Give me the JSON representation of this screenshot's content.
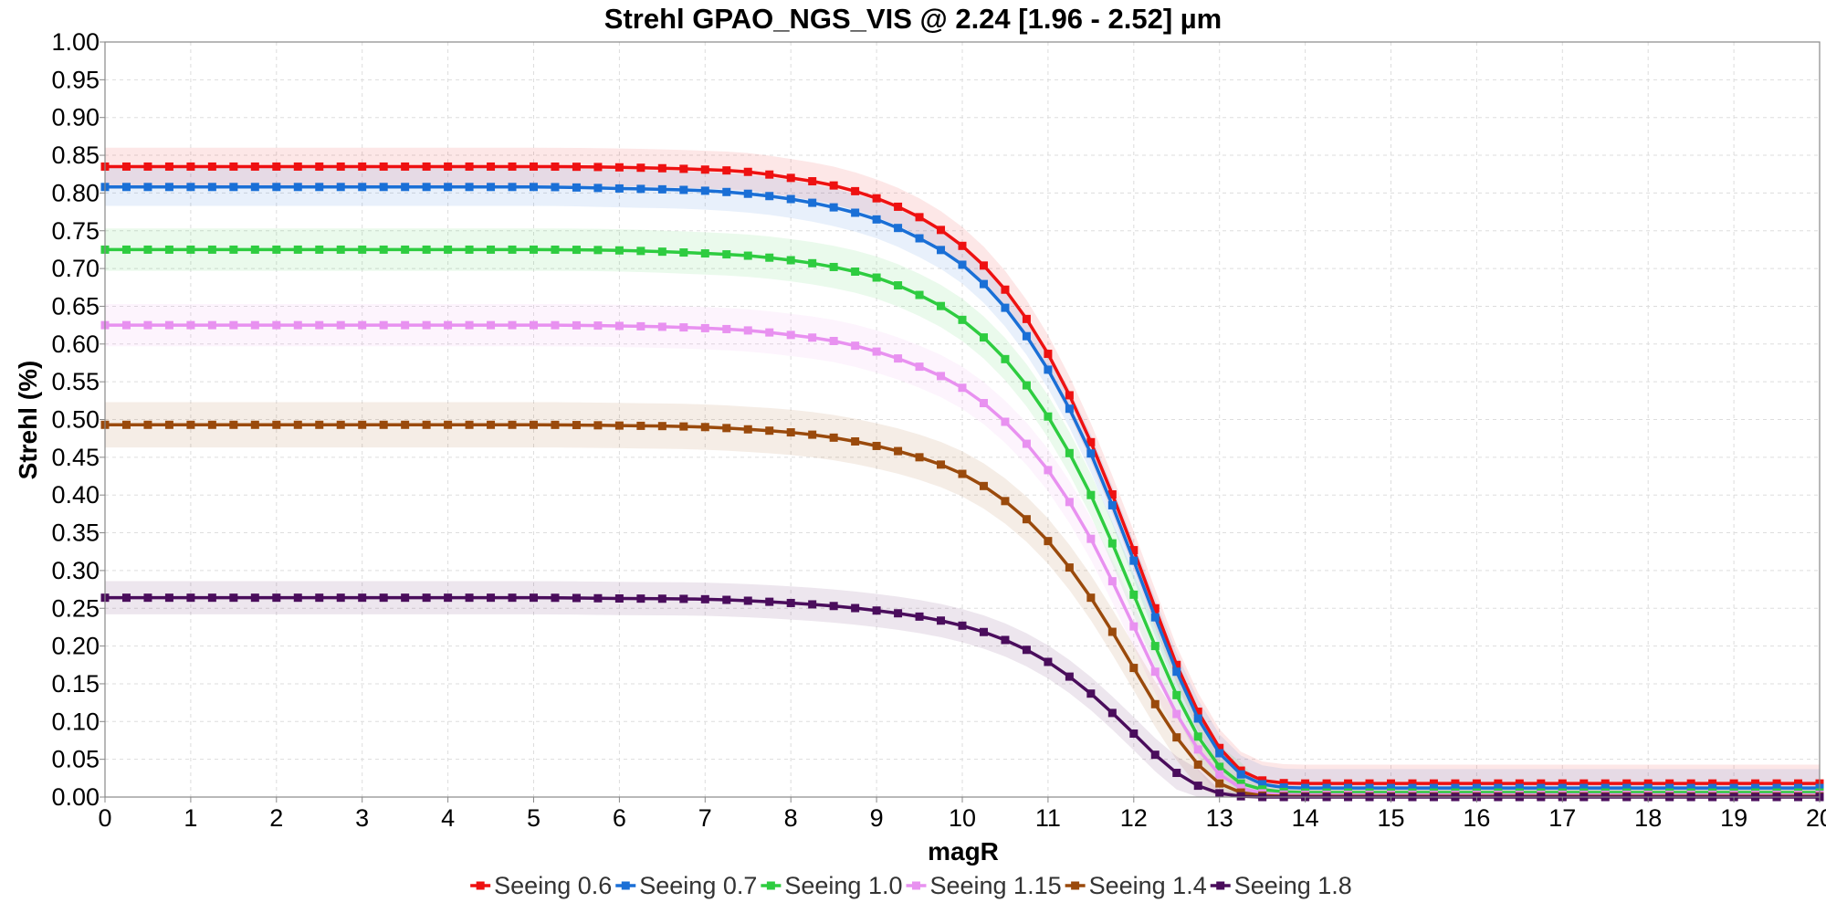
{
  "chart_data": {
    "type": "line",
    "title": "Strehl GPAO_NGS_VIS @ 2.24 [1.96 - 2.52] µm",
    "xlabel": "magR",
    "ylabel": "Strehl (%)",
    "xlim": [
      0,
      20
    ],
    "ylim": [
      0,
      1
    ],
    "grid": true,
    "legend_position": "bottom",
    "bands": "shaded uncertainty band around each series",
    "x_ticks": [
      "0",
      "1",
      "2",
      "3",
      "4",
      "5",
      "6",
      "7",
      "8",
      "9",
      "10",
      "11",
      "12",
      "13",
      "14",
      "15",
      "16",
      "17",
      "18",
      "19",
      "20"
    ],
    "y_ticks": [
      "0.00",
      "0.05",
      "0.10",
      "0.15",
      "0.20",
      "0.25",
      "0.30",
      "0.35",
      "0.40",
      "0.45",
      "0.50",
      "0.55",
      "0.60",
      "0.65",
      "0.70",
      "0.75",
      "0.80",
      "0.85",
      "0.90",
      "0.95",
      "1.00"
    ],
    "x": [
      0,
      1,
      2,
      3,
      4,
      5,
      6,
      7,
      7.5,
      8,
      8.5,
      9,
      9.5,
      10,
      10.5,
      11,
      11.5,
      12,
      12.25,
      12.5,
      12.75,
      13,
      13.25,
      13.5,
      14,
      15,
      16,
      17,
      18,
      19,
      20
    ],
    "series": [
      {
        "name": "Seeing 0.6",
        "color": "#ee1111",
        "band_width": 0.025,
        "values": [
          0.835,
          0.835,
          0.835,
          0.835,
          0.835,
          0.835,
          0.834,
          0.831,
          0.828,
          0.82,
          0.81,
          0.793,
          0.768,
          0.73,
          0.672,
          0.587,
          0.47,
          0.327,
          0.25,
          0.175,
          0.113,
          0.065,
          0.035,
          0.022,
          0.018,
          0.018,
          0.018,
          0.018,
          0.018,
          0.018,
          0.018
        ]
      },
      {
        "name": "Seeing 0.7",
        "color": "#1a6fd6",
        "band_width": 0.025,
        "values": [
          0.808,
          0.808,
          0.808,
          0.808,
          0.808,
          0.808,
          0.806,
          0.803,
          0.799,
          0.792,
          0.781,
          0.765,
          0.74,
          0.705,
          0.648,
          0.566,
          0.455,
          0.313,
          0.238,
          0.166,
          0.104,
          0.058,
          0.03,
          0.017,
          0.012,
          0.012,
          0.012,
          0.012,
          0.012,
          0.012,
          0.012
        ]
      },
      {
        "name": "Seeing 1.0",
        "color": "#2ecc40",
        "band_width": 0.028,
        "values": [
          0.725,
          0.725,
          0.725,
          0.725,
          0.725,
          0.725,
          0.724,
          0.72,
          0.717,
          0.711,
          0.702,
          0.688,
          0.665,
          0.632,
          0.58,
          0.504,
          0.4,
          0.268,
          0.2,
          0.135,
          0.08,
          0.04,
          0.018,
          0.01,
          0.006,
          0.006,
          0.006,
          0.006,
          0.006,
          0.006,
          0.006
        ]
      },
      {
        "name": "Seeing 1.15",
        "color": "#e891f0",
        "band_width": 0.028,
        "values": [
          0.625,
          0.625,
          0.625,
          0.625,
          0.625,
          0.625,
          0.624,
          0.621,
          0.618,
          0.612,
          0.604,
          0.59,
          0.57,
          0.542,
          0.497,
          0.433,
          0.342,
          0.226,
          0.166,
          0.11,
          0.063,
          0.03,
          0.012,
          0.005,
          0.003,
          0.003,
          0.003,
          0.003,
          0.003,
          0.003,
          0.003
        ]
      },
      {
        "name": "Seeing 1.4",
        "color": "#9a4a0c",
        "band_width": 0.03,
        "values": [
          0.493,
          0.493,
          0.493,
          0.493,
          0.493,
          0.493,
          0.492,
          0.49,
          0.487,
          0.483,
          0.476,
          0.465,
          0.45,
          0.428,
          0.392,
          0.339,
          0.264,
          0.171,
          0.123,
          0.079,
          0.043,
          0.018,
          0.006,
          0.002,
          0.001,
          0.001,
          0.001,
          0.001,
          0.001,
          0.001,
          0.001
        ]
      },
      {
        "name": "Seeing 1.8",
        "color": "#4a0d5c",
        "band_width": 0.022,
        "values": [
          0.264,
          0.264,
          0.264,
          0.264,
          0.264,
          0.264,
          0.263,
          0.262,
          0.26,
          0.257,
          0.253,
          0.247,
          0.239,
          0.227,
          0.208,
          0.179,
          0.137,
          0.084,
          0.056,
          0.032,
          0.015,
          0.005,
          0.001,
          0.0,
          0.0,
          0.0,
          0.0,
          0.0,
          0.0,
          0.0,
          0.0
        ]
      }
    ]
  }
}
